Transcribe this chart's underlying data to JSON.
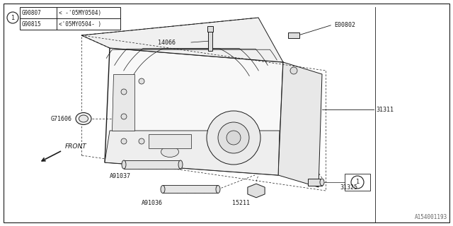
{
  "bg_color": "#ffffff",
  "line_color": "#1a1a1a",
  "watermark": "A154001193",
  "legend_items": [
    {
      "code": "G90807",
      "desc": "< -'05MY0504)"
    },
    {
      "code": "G90815",
      "desc": "<'05MY0504- )"
    }
  ]
}
